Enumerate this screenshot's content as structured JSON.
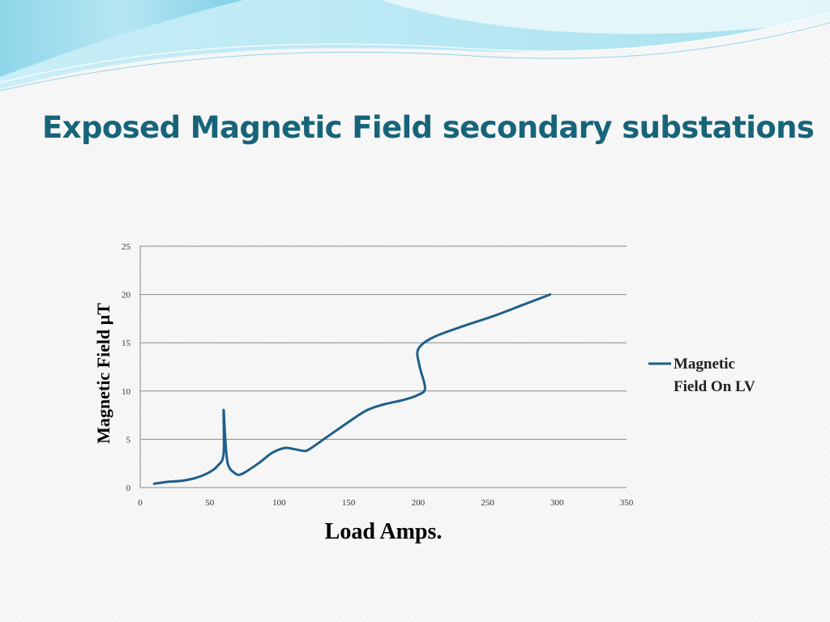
{
  "slide": {
    "title": "Exposed Magnetic Field secondary substations",
    "colors": {
      "title": "#17647a",
      "accent_wave": "#7fd0e6",
      "series": "#1f5f8b"
    }
  },
  "chart_data": {
    "type": "line",
    "title": "",
    "xlabel": "Load Amps.",
    "ylabel": "Magnetic Field μT",
    "xlim": [
      0,
      350
    ],
    "ylim": [
      0,
      25
    ],
    "xticks": [
      0,
      50,
      100,
      150,
      200,
      250,
      300,
      350
    ],
    "yticks": [
      0,
      5,
      10,
      15,
      20,
      25
    ],
    "grid": "horizontal",
    "legend_position": "right",
    "series": [
      {
        "name": "Magnetic Field On LV",
        "color": "#1f5f8b",
        "points": [
          [
            10,
            0.4
          ],
          [
            20,
            0.6
          ],
          [
            30,
            0.7
          ],
          [
            40,
            1.0
          ],
          [
            50,
            1.6
          ],
          [
            56,
            2.3
          ],
          [
            60,
            3.5
          ],
          [
            60,
            8.0
          ],
          [
            61,
            5.5
          ],
          [
            63,
            2.5
          ],
          [
            68,
            1.5
          ],
          [
            73,
            1.4
          ],
          [
            85,
            2.5
          ],
          [
            95,
            3.6
          ],
          [
            104,
            4.1
          ],
          [
            110,
            4.0
          ],
          [
            118,
            3.8
          ],
          [
            122,
            4.0
          ],
          [
            135,
            5.3
          ],
          [
            150,
            6.8
          ],
          [
            163,
            8.0
          ],
          [
            175,
            8.6
          ],
          [
            190,
            9.1
          ],
          [
            200,
            9.6
          ],
          [
            205,
            10.3
          ],
          [
            201,
            12.6
          ],
          [
            200,
            14.3
          ],
          [
            210,
            15.5
          ],
          [
            230,
            16.6
          ],
          [
            255,
            17.8
          ],
          [
            275,
            18.9
          ],
          [
            295,
            20.0
          ]
        ]
      }
    ]
  }
}
